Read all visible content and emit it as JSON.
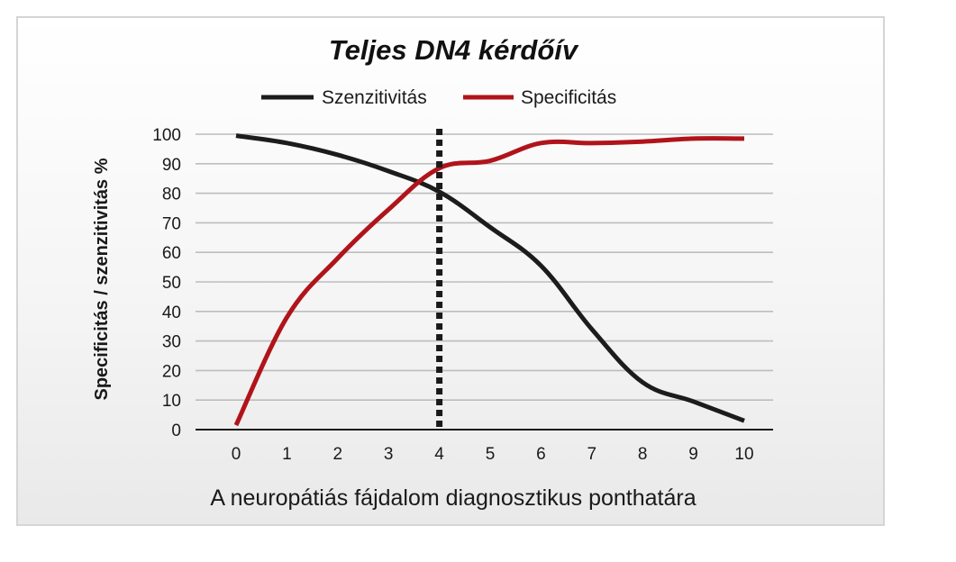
{
  "chart_data": {
    "type": "line",
    "title": "Teljes DN4 kérdőív",
    "xlabel": "A neuropátiás fájdalom diagnosztikus ponthatára",
    "ylabel": "Specificitás / szenzitivitás %",
    "x": [
      0,
      1,
      2,
      3,
      4,
      5,
      6,
      7,
      8,
      9,
      10
    ],
    "x_ticks": [
      "0",
      "1",
      "2",
      "3",
      "4",
      "5",
      "6",
      "7",
      "8",
      "9",
      "10"
    ],
    "y_ticks": [
      "0",
      "10",
      "20",
      "30",
      "40",
      "50",
      "60",
      "70",
      "80",
      "90",
      "100"
    ],
    "ylim": [
      0,
      100
    ],
    "xlim": [
      0,
      10
    ],
    "grid": true,
    "legend_position": "top-center",
    "cutoff_x": 4,
    "series": [
      {
        "name": "Szenzitivitás",
        "color": "#1c1c1c",
        "values": [
          99.5,
          97,
          93,
          87.5,
          80.5,
          68.5,
          55.5,
          34,
          16,
          9.5,
          3
        ]
      },
      {
        "name": "Specificitás",
        "color": "#b0141a",
        "values": [
          1.5,
          38,
          58,
          74.5,
          88.5,
          91,
          97,
          97,
          97.5,
          98.5,
          98.5
        ]
      }
    ]
  }
}
